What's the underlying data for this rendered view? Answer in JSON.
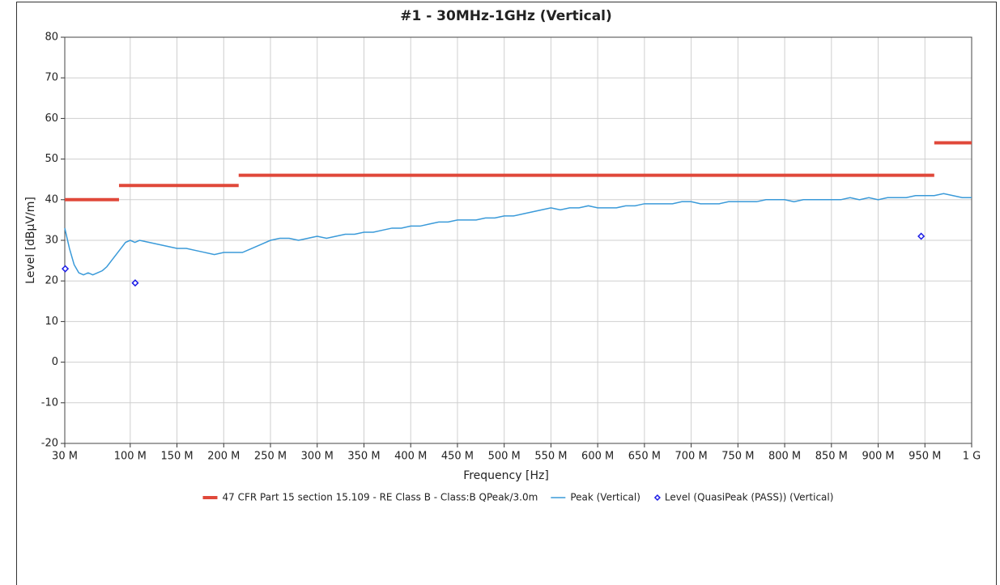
{
  "chart_data": {
    "type": "line",
    "title": "#1 - 30MHz-1GHz (Vertical)",
    "x_label": "Frequency [Hz]",
    "y_label": "Level [dBµV/m]",
    "xlim": [
      30000000,
      1000000000
    ],
    "ylim": [
      -20,
      80
    ],
    "xticks": [
      {
        "value": 30000000,
        "label": "30 M"
      },
      {
        "value": 100000000,
        "label": "100 M"
      },
      {
        "value": 150000000,
        "label": "150 M"
      },
      {
        "value": 200000000,
        "label": "200 M"
      },
      {
        "value": 250000000,
        "label": "250 M"
      },
      {
        "value": 300000000,
        "label": "300 M"
      },
      {
        "value": 350000000,
        "label": "350 M"
      },
      {
        "value": 400000000,
        "label": "400 M"
      },
      {
        "value": 450000000,
        "label": "450 M"
      },
      {
        "value": 500000000,
        "label": "500 M"
      },
      {
        "value": 550000000,
        "label": "550 M"
      },
      {
        "value": 600000000,
        "label": "600 M"
      },
      {
        "value": 650000000,
        "label": "650 M"
      },
      {
        "value": 700000000,
        "label": "700 M"
      },
      {
        "value": 750000000,
        "label": "750 M"
      },
      {
        "value": 800000000,
        "label": "800 M"
      },
      {
        "value": 850000000,
        "label": "850 M"
      },
      {
        "value": 900000000,
        "label": "900 M"
      },
      {
        "value": 950000000,
        "label": "950 M"
      },
      {
        "value": 1000000000,
        "label": "1 G"
      }
    ],
    "yticks": [
      -20,
      -10,
      0,
      10,
      20,
      30,
      40,
      50,
      60,
      70,
      80
    ],
    "grid": true,
    "legend": "bottom",
    "series": [
      {
        "name": "47 CFR Part 15 section 15.109 - RE Class B - Class:B QPeak/3.0m",
        "type": "line",
        "color": "#e0483a",
        "width": 4,
        "x": [
          30000000,
          88000000,
          88000000,
          88000000,
          216000000,
          216000000,
          216000000,
          960000000,
          960000000,
          960000000,
          1000000000
        ],
        "values": [
          40,
          40,
          null,
          43.5,
          43.5,
          null,
          46,
          46,
          null,
          54,
          54
        ]
      },
      {
        "name": "Peak (Vertical)",
        "type": "line",
        "color": "#3a9ad9",
        "width": 1.5,
        "x": [
          30000000,
          35000000,
          40000000,
          45000000,
          50000000,
          55000000,
          60000000,
          65000000,
          70000000,
          75000000,
          80000000,
          85000000,
          90000000,
          95000000,
          100000000,
          105000000,
          110000000,
          120000000,
          130000000,
          140000000,
          150000000,
          160000000,
          170000000,
          180000000,
          190000000,
          200000000,
          210000000,
          220000000,
          230000000,
          240000000,
          250000000,
          260000000,
          270000000,
          280000000,
          290000000,
          300000000,
          310000000,
          320000000,
          330000000,
          340000000,
          350000000,
          360000000,
          370000000,
          380000000,
          390000000,
          400000000,
          410000000,
          420000000,
          430000000,
          440000000,
          450000000,
          460000000,
          470000000,
          480000000,
          490000000,
          500000000,
          510000000,
          520000000,
          530000000,
          540000000,
          550000000,
          560000000,
          570000000,
          580000000,
          590000000,
          600000000,
          610000000,
          620000000,
          630000000,
          640000000,
          650000000,
          660000000,
          670000000,
          680000000,
          690000000,
          700000000,
          710000000,
          720000000,
          730000000,
          740000000,
          750000000,
          760000000,
          770000000,
          780000000,
          790000000,
          800000000,
          810000000,
          820000000,
          830000000,
          840000000,
          850000000,
          860000000,
          870000000,
          880000000,
          890000000,
          900000000,
          910000000,
          920000000,
          930000000,
          940000000,
          950000000,
          960000000,
          970000000,
          980000000,
          990000000,
          1000000000
        ],
        "values": [
          33,
          28,
          24,
          22,
          21.5,
          22,
          21.5,
          22,
          22.5,
          23.5,
          25,
          26.5,
          28,
          29.5,
          30,
          29.5,
          30,
          29.5,
          29,
          28.5,
          28,
          28,
          27.5,
          27,
          26.5,
          27,
          27,
          27,
          28,
          29,
          30,
          30.5,
          30.5,
          30,
          30.5,
          31,
          30.5,
          31,
          31.5,
          31.5,
          32,
          32,
          32.5,
          33,
          33,
          33.5,
          33.5,
          34,
          34.5,
          34.5,
          35,
          35,
          35,
          35.5,
          35.5,
          36,
          36,
          36.5,
          37,
          37.5,
          38,
          37.5,
          38,
          38,
          38.5,
          38,
          38,
          38,
          38.5,
          38.5,
          39,
          39,
          39,
          39,
          39.5,
          39.5,
          39,
          39,
          39,
          39.5,
          39.5,
          39.5,
          39.5,
          40,
          40,
          40,
          39.5,
          40,
          40,
          40,
          40,
          40,
          40.5,
          40,
          40.5,
          40,
          40.5,
          40.5,
          40.5,
          41,
          41,
          41,
          41.5,
          41,
          40.5,
          40.5
        ]
      },
      {
        "name": "Level (QuasiPeak (PASS)) (Vertical)",
        "type": "scatter",
        "color": "#1a1ae6",
        "x": [
          30500000,
          105300000,
          946000000
        ],
        "values": [
          23,
          19.5,
          31
        ]
      }
    ]
  }
}
